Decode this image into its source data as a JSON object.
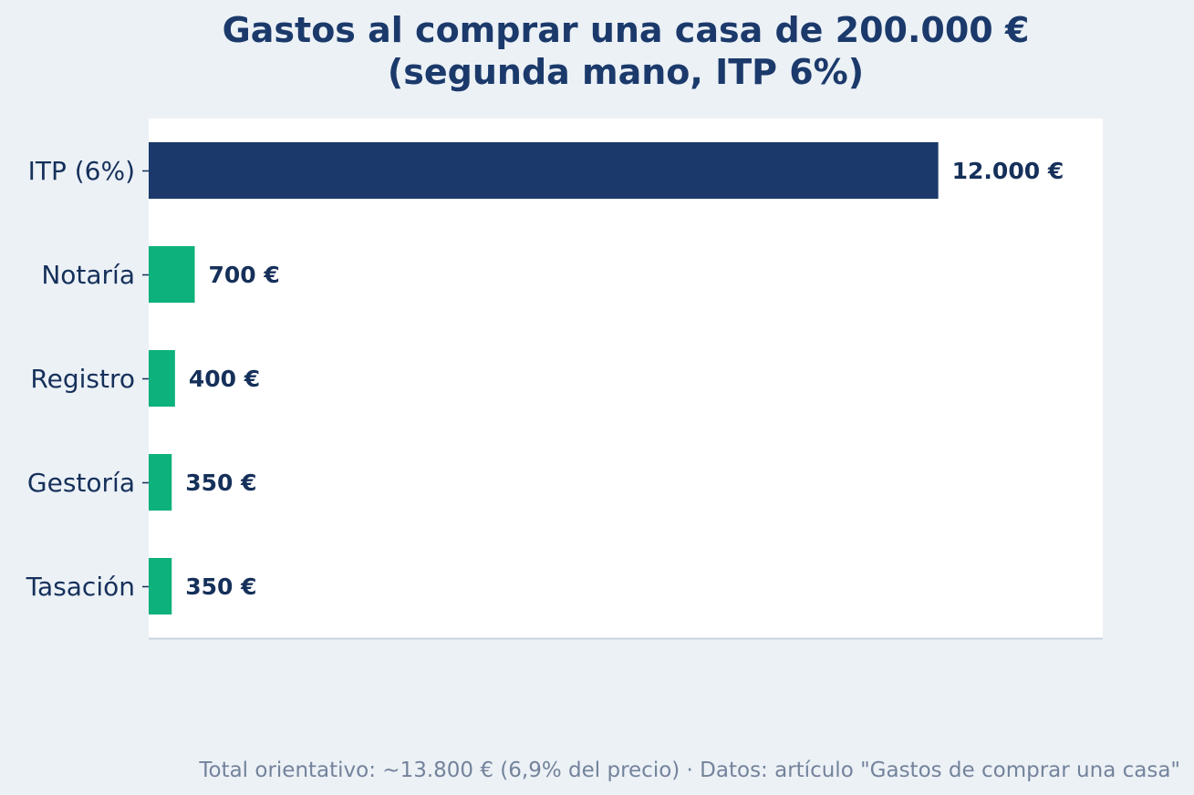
{
  "chart_data": {
    "type": "bar",
    "orientation": "horizontal",
    "title": "Gastos al comprar una casa de 200.000 €\n(segunda mano, ITP 6%)",
    "categories": [
      "ITP (6%)",
      "Notaría",
      "Registro",
      "Gestoría",
      "Tasación"
    ],
    "values": [
      12000,
      700,
      400,
      350,
      350
    ],
    "value_labels": [
      "12.000 €",
      "700 €",
      "400 €",
      "350 €",
      "350 €"
    ],
    "xlim": [
      0,
      14500
    ],
    "xlabel": "",
    "ylabel": "",
    "grid": false,
    "footer": "Total orientativo: ~13.800 € (6,9% del precio)  ·  Datos: artículo \"Gastos de comprar una casa\""
  },
  "colors": {
    "background": "#ecf1f6",
    "plot_background": "#ffffff",
    "highlight_bar": "#1b3a6b",
    "bar": "#0db17c",
    "title": "#1b3a6b",
    "labels": "#15305a",
    "footer": "#73839b",
    "axis": "#c9d3df"
  }
}
